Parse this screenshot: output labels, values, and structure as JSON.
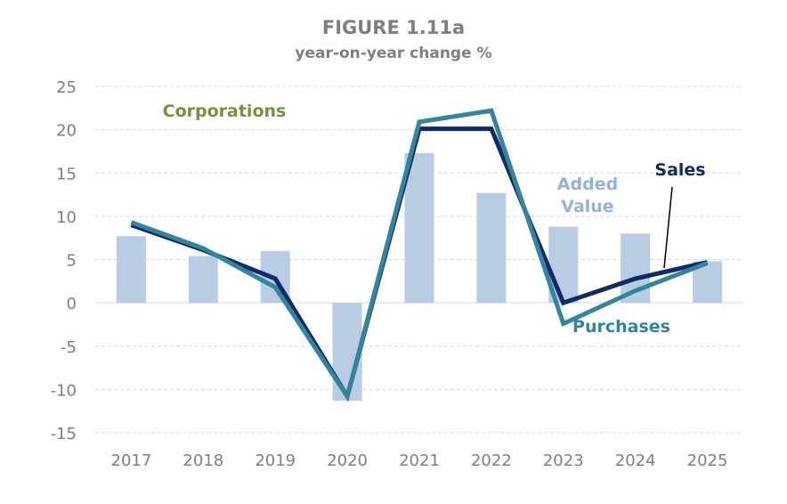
{
  "chart_data": {
    "type": "bar+line",
    "title": "FIGURE 1.11a",
    "subtitle": "year-on-year change %",
    "annotation": "Corporations",
    "categories": [
      "2017",
      "2018",
      "2019",
      "2020",
      "2021",
      "2022",
      "2023",
      "2024",
      "2025"
    ],
    "ylim": [
      -15,
      25
    ],
    "yticks": [
      25,
      20,
      15,
      10,
      5,
      0,
      -5,
      -10,
      -15
    ],
    "grid": true,
    "series": [
      {
        "name": "Added Value",
        "type": "bar",
        "color": "#b8cce4",
        "values": [
          7.7,
          5.4,
          6.0,
          -11.3,
          17.3,
          12.7,
          8.8,
          8.0,
          4.8
        ]
      },
      {
        "name": "Sales",
        "type": "line",
        "color": "#0d2a6b",
        "values": [
          9.0,
          6.1,
          2.8,
          -10.8,
          20.1,
          20.1,
          0.0,
          2.8,
          4.7
        ]
      },
      {
        "name": "Purchases",
        "type": "line",
        "color": "#31859c",
        "values": [
          9.3,
          6.3,
          1.8,
          -10.8,
          20.9,
          22.2,
          -2.4,
          1.4,
          4.6
        ]
      }
    ],
    "colors": {
      "title": "#7f7f7f",
      "annotation": "#76923c",
      "axis_text": "#7f7f7f"
    }
  }
}
